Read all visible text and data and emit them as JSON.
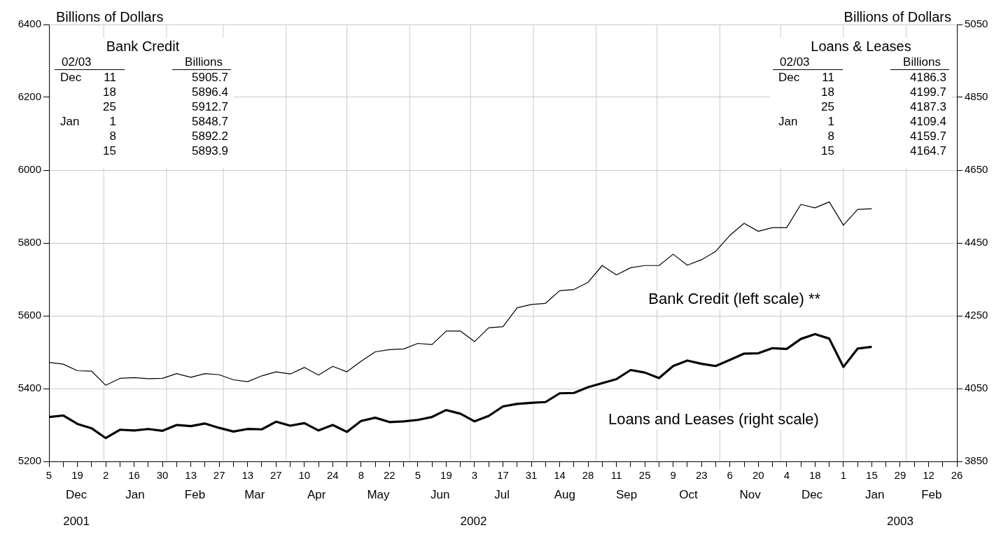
{
  "chart_data": {
    "type": "line",
    "ylabel": "Billions of Dollars",
    "y2label": "Billions of Dollars",
    "x": [
      "2001-12-05",
      "2001-12-12",
      "2001-12-19",
      "2001-12-26",
      "2002-01-02",
      "2002-01-09",
      "2002-01-16",
      "2002-01-23",
      "2002-01-30",
      "2002-02-06",
      "2002-02-13",
      "2002-02-20",
      "2002-02-27",
      "2002-03-06",
      "2002-03-13",
      "2002-03-20",
      "2002-03-27",
      "2002-04-03",
      "2002-04-10",
      "2002-04-17",
      "2002-04-24",
      "2002-05-01",
      "2002-05-08",
      "2002-05-15",
      "2002-05-22",
      "2002-05-29",
      "2002-06-05",
      "2002-06-12",
      "2002-06-19",
      "2002-06-26",
      "2002-07-03",
      "2002-07-10",
      "2002-07-17",
      "2002-07-24",
      "2002-07-31",
      "2002-08-07",
      "2002-08-14",
      "2002-08-21",
      "2002-08-28",
      "2002-09-04",
      "2002-09-11",
      "2002-09-18",
      "2002-09-25",
      "2002-10-02",
      "2002-10-09",
      "2002-10-16",
      "2002-10-23",
      "2002-10-30",
      "2002-11-06",
      "2002-11-13",
      "2002-11-20",
      "2002-11-27",
      "2002-12-04",
      "2002-12-11",
      "2002-12-18",
      "2002-12-25",
      "2003-01-01",
      "2003-01-08",
      "2003-01-15"
    ],
    "series": [
      {
        "name": "Bank Credit (left scale) **",
        "color": "#000000",
        "values": [
          5472,
          5467,
          5449,
          5448,
          5409,
          5428,
          5430,
          5427,
          5428,
          5441,
          5431,
          5441,
          5438,
          5424,
          5419,
          5435,
          5446,
          5440,
          5458,
          5437,
          5461,
          5446,
          5475,
          5501,
          5507,
          5509,
          5524,
          5521,
          5558,
          5558,
          5529,
          5567,
          5570,
          5622,
          5631,
          5634,
          5669,
          5672,
          5692,
          5738,
          5712,
          5732,
          5738,
          5738,
          5769,
          5739,
          5754,
          5777,
          5821,
          5854,
          5832,
          5842,
          5842,
          5905.7,
          5896.4,
          5912.7,
          5848.7,
          5892.2,
          5893.9
        ],
        "line_style": "solid"
      },
      {
        "name": "Loans and Leases (right scale)",
        "color": "#000000",
        "axis": "y2",
        "values": [
          3972,
          3976,
          3953,
          3941,
          3914,
          3937,
          3935,
          3939,
          3934,
          3950,
          3947,
          3954,
          3942,
          3932,
          3939,
          3938,
          3959,
          3948,
          3955,
          3935,
          3950,
          3931,
          3961,
          3970,
          3958,
          3960,
          3964,
          3972,
          3991,
          3981,
          3960,
          3975,
          4001,
          4008,
          4011,
          4013,
          4037,
          4038,
          4054,
          4065,
          4076,
          4101,
          4094,
          4079,
          4112,
          4127,
          4118,
          4112,
          4129,
          4146,
          4147,
          4161,
          4159,
          4186.3,
          4199.7,
          4187.3,
          4109.4,
          4159.7,
          4164.7
        ],
        "line_style": "solid"
      }
    ],
    "xlim": [
      "2001-12-05",
      "2003-02-26"
    ],
    "xticks": [
      {
        "value": "2001-12-05",
        "label": "5"
      },
      {
        "value": "2001-12-12",
        "label": null
      },
      {
        "value": "2001-12-19",
        "label": "19"
      },
      {
        "value": "2001-12-26",
        "label": null
      },
      {
        "value": "2002-01-02",
        "label": "2"
      },
      {
        "value": "2002-01-09",
        "label": null
      },
      {
        "value": "2002-01-16",
        "label": "16"
      },
      {
        "value": "2002-01-23",
        "label": null
      },
      {
        "value": "2002-01-30",
        "label": "30"
      },
      {
        "value": "2002-02-06",
        "label": null
      },
      {
        "value": "2002-02-13",
        "label": "13"
      },
      {
        "value": "2002-02-20",
        "label": null
      },
      {
        "value": "2002-02-27",
        "label": "27"
      },
      {
        "value": "2002-03-06",
        "label": null
      },
      {
        "value": "2002-03-13",
        "label": "13"
      },
      {
        "value": "2002-03-20",
        "label": null
      },
      {
        "value": "2002-03-27",
        "label": "27"
      },
      {
        "value": "2002-04-03",
        "label": null
      },
      {
        "value": "2002-04-10",
        "label": "10"
      },
      {
        "value": "2002-04-17",
        "label": null
      },
      {
        "value": "2002-04-24",
        "label": "24"
      },
      {
        "value": "2002-05-01",
        "label": null
      },
      {
        "value": "2002-05-08",
        "label": "8"
      },
      {
        "value": "2002-05-15",
        "label": null
      },
      {
        "value": "2002-05-22",
        "label": "22"
      },
      {
        "value": "2002-05-29",
        "label": null
      },
      {
        "value": "2002-06-05",
        "label": "5"
      },
      {
        "value": "2002-06-12",
        "label": null
      },
      {
        "value": "2002-06-19",
        "label": "19"
      },
      {
        "value": "2002-06-26",
        "label": null
      },
      {
        "value": "2002-07-03",
        "label": "3"
      },
      {
        "value": "2002-07-10",
        "label": null
      },
      {
        "value": "2002-07-17",
        "label": "17"
      },
      {
        "value": "2002-07-24",
        "label": null
      },
      {
        "value": "2002-07-31",
        "label": "31"
      },
      {
        "value": "2002-08-07",
        "label": null
      },
      {
        "value": "2002-08-14",
        "label": "14"
      },
      {
        "value": "2002-08-21",
        "label": null
      },
      {
        "value": "2002-08-28",
        "label": "28"
      },
      {
        "value": "2002-09-04",
        "label": null
      },
      {
        "value": "2002-09-11",
        "label": "11"
      },
      {
        "value": "2002-09-18",
        "label": null
      },
      {
        "value": "2002-09-25",
        "label": "25"
      },
      {
        "value": "2002-10-02",
        "label": null
      },
      {
        "value": "2002-10-09",
        "label": "9"
      },
      {
        "value": "2002-10-16",
        "label": null
      },
      {
        "value": "2002-10-23",
        "label": "23"
      },
      {
        "value": "2002-10-30",
        "label": null
      },
      {
        "value": "2002-11-06",
        "label": "6"
      },
      {
        "value": "2002-11-13",
        "label": null
      },
      {
        "value": "2002-11-20",
        "label": "20"
      },
      {
        "value": "2002-11-27",
        "label": null
      },
      {
        "value": "2002-12-04",
        "label": "4"
      },
      {
        "value": "2002-12-11",
        "label": null
      },
      {
        "value": "2002-12-18",
        "label": "18"
      },
      {
        "value": "2002-12-25",
        "label": null
      },
      {
        "value": "2003-01-01",
        "label": "1"
      },
      {
        "value": "2003-01-08",
        "label": null
      },
      {
        "value": "2003-01-15",
        "label": "15"
      },
      {
        "value": "2003-01-22",
        "label": null
      },
      {
        "value": "2003-01-29",
        "label": "29"
      },
      {
        "value": "2003-02-05",
        "label": null
      },
      {
        "value": "2003-02-12",
        "label": "12"
      },
      {
        "value": "2003-02-19",
        "label": null
      },
      {
        "value": "2003-02-26",
        "label": "26"
      }
    ],
    "ylim": [
      5200,
      6400
    ],
    "yticks": [
      5200,
      5400,
      5600,
      5800,
      6000,
      6200,
      6400
    ],
    "y2lim": [
      3850,
      5050
    ],
    "y2ticks": [
      3850,
      4050,
      4250,
      4450,
      4650,
      4850,
      5050
    ],
    "grid": "y",
    "ref_lines": [
      {
        "axis": "x",
        "value": "2002-01-01",
        "color": "#cccccc"
      },
      {
        "axis": "x",
        "value": "2002-02-01",
        "color": "#cccccc"
      },
      {
        "axis": "x",
        "value": "2002-03-01",
        "color": "#cccccc"
      },
      {
        "axis": "x",
        "value": "2002-04-01",
        "color": "#cccccc"
      },
      {
        "axis": "x",
        "value": "2002-05-01",
        "color": "#cccccc"
      },
      {
        "axis": "x",
        "value": "2002-06-01",
        "color": "#cccccc"
      },
      {
        "axis": "x",
        "value": "2002-07-01",
        "color": "#cccccc"
      },
      {
        "axis": "x",
        "value": "2002-08-01",
        "color": "#cccccc"
      },
      {
        "axis": "x",
        "value": "2002-09-01",
        "color": "#cccccc"
      },
      {
        "axis": "x",
        "value": "2002-10-01",
        "color": "#cccccc"
      },
      {
        "axis": "x",
        "value": "2002-11-01",
        "color": "#cccccc"
      },
      {
        "axis": "x",
        "value": "2002-12-01",
        "color": "#cccccc"
      },
      {
        "axis": "x",
        "value": "2003-01-01",
        "color": "#cccccc"
      },
      {
        "axis": "x",
        "value": "2003-02-01",
        "color": "#cccccc"
      }
    ],
    "annotations": [
      "Bank Credit",
      "02/03",
      "Billions",
      "Dec 11",
      "18",
      "25",
      "Jan 1",
      "8",
      "15",
      "5905.7",
      "5896.4",
      "5912.7",
      "5848.7",
      "5892.2",
      "5893.9",
      "Loans & Leases",
      "02/03",
      "Billions",
      "Dec 11",
      "18",
      "25",
      "Jan 1",
      "8",
      "15",
      "4186.3",
      "4199.7",
      "4187.3",
      "4109.4",
      "4159.7",
      "4164.7",
      "Dec",
      "Jan",
      "Feb",
      "Mar",
      "Apr",
      "May",
      "Jun",
      "Jul",
      "Aug",
      "Sep",
      "Oct",
      "Nov",
      "Dec",
      "Jan",
      "Feb",
      "2001",
      "2002",
      "2003"
    ]
  }
}
